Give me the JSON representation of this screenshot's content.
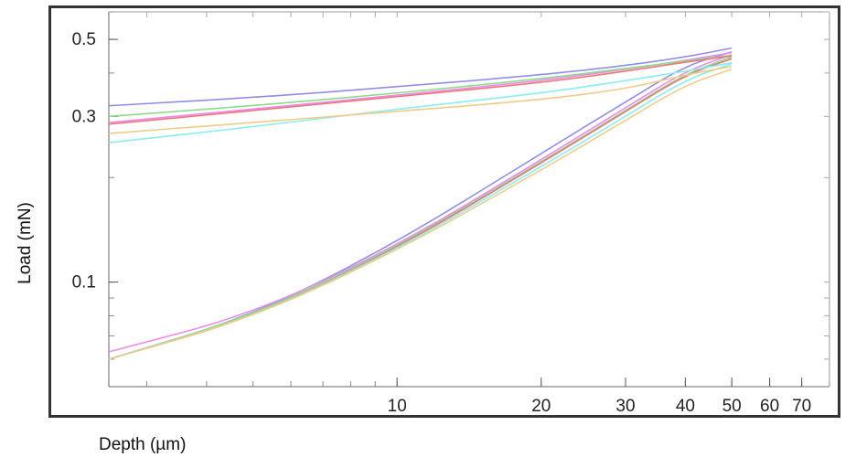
{
  "chart_data": {
    "type": "line",
    "title": "",
    "xlabel": "Depth (µm)",
    "ylabel": "Load (mN)",
    "x_scale": "log",
    "y_scale": "log",
    "xlim": [
      2.5,
      80
    ],
    "ylim": [
      0.05,
      0.6
    ],
    "x_ticks": [
      10,
      20,
      30,
      40,
      50,
      60,
      70
    ],
    "y_ticks": [
      0.1,
      0.3,
      0.5
    ],
    "grid": false,
    "legend": "none",
    "series": [
      {
        "color": "#8f8fe6",
        "loading": {
          "x": [
            2.5,
            5,
            10,
            20,
            30,
            40,
            50
          ],
          "y": [
            0.06,
            0.08,
            0.13,
            0.235,
            0.33,
            0.42,
            0.46
          ]
        },
        "unloading": {
          "x": [
            2.5,
            5,
            10,
            20,
            30,
            40,
            50
          ],
          "y": [
            0.322,
            0.34,
            0.365,
            0.395,
            0.42,
            0.445,
            0.472
          ]
        }
      },
      {
        "color": "#ee88ee",
        "loading": {
          "x": [
            2.5,
            5,
            10,
            20,
            30,
            40,
            50
          ],
          "y": [
            0.063,
            0.081,
            0.127,
            0.225,
            0.318,
            0.405,
            0.452
          ]
        },
        "unloading": {
          "x": [
            2.5,
            5,
            10,
            20,
            30,
            40,
            50
          ],
          "y": [
            0.288,
            0.315,
            0.345,
            0.38,
            0.41,
            0.435,
            0.458
          ]
        }
      },
      {
        "color": "#88dd88",
        "loading": {
          "x": [
            2.5,
            5,
            10,
            20,
            30,
            40,
            50
          ],
          "y": [
            0.06,
            0.08,
            0.126,
            0.222,
            0.312,
            0.398,
            0.445
          ]
        },
        "unloading": {
          "x": [
            2.5,
            5,
            10,
            20,
            30,
            40,
            50
          ],
          "y": [
            0.3,
            0.322,
            0.35,
            0.385,
            0.412,
            0.433,
            0.45
          ]
        }
      },
      {
        "color": "#ee7777",
        "loading": {
          "x": [
            2.5,
            5,
            10,
            20,
            30,
            40,
            50
          ],
          "y": [
            0.06,
            0.079,
            0.125,
            0.22,
            0.31,
            0.395,
            0.44
          ]
        },
        "unloading": {
          "x": [
            2.5,
            5,
            10,
            20,
            30,
            40,
            50
          ],
          "y": [
            0.285,
            0.312,
            0.342,
            0.375,
            0.405,
            0.43,
            0.448
          ]
        }
      },
      {
        "color": "#88eeee",
        "loading": {
          "x": [
            2.5,
            5,
            10,
            20,
            30,
            40,
            50
          ],
          "y": [
            0.06,
            0.079,
            0.124,
            0.215,
            0.3,
            0.383,
            0.425
          ]
        },
        "unloading": {
          "x": [
            2.5,
            5,
            10,
            20,
            30,
            40,
            50
          ],
          "y": [
            0.252,
            0.28,
            0.315,
            0.35,
            0.38,
            0.405,
            0.428
          ]
        }
      },
      {
        "color": "#eecc88",
        "loading": {
          "x": [
            2.5,
            5,
            10,
            20,
            30,
            40,
            50
          ],
          "y": [
            0.06,
            0.079,
            0.123,
            0.21,
            0.292,
            0.37,
            0.41
          ]
        },
        "unloading": {
          "x": [
            2.5,
            5,
            10,
            20,
            30,
            40,
            50
          ],
          "y": [
            0.268,
            0.288,
            0.31,
            0.335,
            0.36,
            0.395,
            0.418
          ]
        }
      }
    ]
  }
}
